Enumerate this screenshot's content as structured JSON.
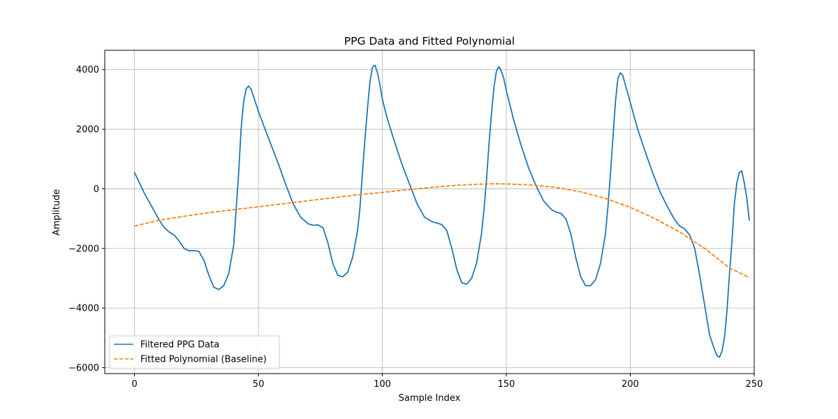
{
  "chart_data": {
    "type": "line",
    "title": "PPG Data and Fitted Polynomial",
    "xlabel": "Sample Index",
    "ylabel": "Amplitude",
    "xlim": [
      -12,
      250
    ],
    "ylim": [
      -6200,
      4650
    ],
    "x_ticks": [
      0,
      50,
      100,
      150,
      200,
      250
    ],
    "x_tick_labels": [
      "0",
      "50",
      "100",
      "150",
      "200",
      "250"
    ],
    "y_ticks": [
      -6000,
      -4000,
      -2000,
      0,
      2000,
      4000
    ],
    "y_tick_labels": [
      "−6000",
      "−4000",
      "−2000",
      "0",
      "2000",
      "4000"
    ],
    "grid": true,
    "legend_position": "lower-left",
    "series": [
      {
        "name": "Filtered PPG Data",
        "color": "#1f77b4",
        "style": "solid",
        "points": [
          [
            0,
            550
          ],
          [
            2,
            200
          ],
          [
            4,
            -150
          ],
          [
            6,
            -450
          ],
          [
            8,
            -750
          ],
          [
            10,
            -1050
          ],
          [
            12,
            -1300
          ],
          [
            14,
            -1450
          ],
          [
            16,
            -1550
          ],
          [
            18,
            -1750
          ],
          [
            20,
            -2000
          ],
          [
            22,
            -2080
          ],
          [
            24,
            -2070
          ],
          [
            26,
            -2100
          ],
          [
            28,
            -2400
          ],
          [
            30,
            -2900
          ],
          [
            32,
            -3300
          ],
          [
            34,
            -3380
          ],
          [
            36,
            -3250
          ],
          [
            38,
            -2850
          ],
          [
            40,
            -1900
          ],
          [
            42,
            500
          ],
          [
            43,
            2000
          ],
          [
            44,
            2900
          ],
          [
            45,
            3350
          ],
          [
            46,
            3450
          ],
          [
            47,
            3350
          ],
          [
            48,
            3100
          ],
          [
            50,
            2600
          ],
          [
            52,
            2150
          ],
          [
            55,
            1500
          ],
          [
            58,
            850
          ],
          [
            61,
            150
          ],
          [
            64,
            -500
          ],
          [
            67,
            -950
          ],
          [
            70,
            -1170
          ],
          [
            72,
            -1220
          ],
          [
            74,
            -1210
          ],
          [
            76,
            -1300
          ],
          [
            78,
            -1800
          ],
          [
            80,
            -2500
          ],
          [
            82,
            -2900
          ],
          [
            84,
            -2950
          ],
          [
            86,
            -2800
          ],
          [
            88,
            -2300
          ],
          [
            90,
            -1400
          ],
          [
            91,
            -600
          ],
          [
            92,
            600
          ],
          [
            93,
            1700
          ],
          [
            94,
            2700
          ],
          [
            95,
            3600
          ],
          [
            96,
            4080
          ],
          [
            97,
            4150
          ],
          [
            98,
            3900
          ],
          [
            99,
            3500
          ],
          [
            100,
            3000
          ],
          [
            102,
            2350
          ],
          [
            105,
            1550
          ],
          [
            108,
            800
          ],
          [
            111,
            150
          ],
          [
            114,
            -500
          ],
          [
            117,
            -950
          ],
          [
            120,
            -1100
          ],
          [
            122,
            -1150
          ],
          [
            124,
            -1200
          ],
          [
            126,
            -1400
          ],
          [
            128,
            -2000
          ],
          [
            130,
            -2700
          ],
          [
            132,
            -3150
          ],
          [
            134,
            -3200
          ],
          [
            136,
            -3000
          ],
          [
            138,
            -2500
          ],
          [
            140,
            -1500
          ],
          [
            141,
            -700
          ],
          [
            142,
            300
          ],
          [
            143,
            1500
          ],
          [
            144,
            2500
          ],
          [
            145,
            3400
          ],
          [
            146,
            3950
          ],
          [
            147,
            4100
          ],
          [
            148,
            3950
          ],
          [
            149,
            3700
          ],
          [
            150,
            3300
          ],
          [
            153,
            2300
          ],
          [
            156,
            1450
          ],
          [
            159,
            700
          ],
          [
            162,
            100
          ],
          [
            165,
            -400
          ],
          [
            168,
            -680
          ],
          [
            170,
            -780
          ],
          [
            172,
            -820
          ],
          [
            174,
            -1000
          ],
          [
            176,
            -1500
          ],
          [
            178,
            -2300
          ],
          [
            180,
            -2950
          ],
          [
            182,
            -3250
          ],
          [
            184,
            -3250
          ],
          [
            186,
            -3050
          ],
          [
            188,
            -2500
          ],
          [
            190,
            -1500
          ],
          [
            191,
            -600
          ],
          [
            192,
            500
          ],
          [
            193,
            1700
          ],
          [
            194,
            2900
          ],
          [
            195,
            3700
          ],
          [
            196,
            3900
          ],
          [
            197,
            3800
          ],
          [
            198,
            3500
          ],
          [
            200,
            2900
          ],
          [
            203,
            2000
          ],
          [
            206,
            1250
          ],
          [
            209,
            550
          ],
          [
            212,
            -100
          ],
          [
            215,
            -600
          ],
          [
            218,
            -1050
          ],
          [
            220,
            -1250
          ],
          [
            222,
            -1350
          ],
          [
            224,
            -1550
          ],
          [
            226,
            -2000
          ],
          [
            228,
            -2900
          ],
          [
            230,
            -3900
          ],
          [
            232,
            -4900
          ],
          [
            234,
            -5400
          ],
          [
            235,
            -5600
          ],
          [
            236,
            -5650
          ],
          [
            237,
            -5450
          ],
          [
            238,
            -5000
          ],
          [
            239,
            -4100
          ],
          [
            240,
            -2900
          ],
          [
            241,
            -1800
          ],
          [
            242,
            -500
          ],
          [
            243,
            200
          ],
          [
            244,
            550
          ],
          [
            245,
            600
          ],
          [
            246,
            200
          ],
          [
            247,
            -300
          ],
          [
            248,
            -1050
          ]
        ]
      },
      {
        "name": "Fitted Polynomial (Baseline)",
        "color": "#ff7f0e",
        "style": "dashed",
        "points": [
          [
            0,
            -1250
          ],
          [
            10,
            -1050
          ],
          [
            20,
            -920
          ],
          [
            30,
            -800
          ],
          [
            40,
            -700
          ],
          [
            50,
            -600
          ],
          [
            60,
            -500
          ],
          [
            70,
            -400
          ],
          [
            80,
            -300
          ],
          [
            90,
            -200
          ],
          [
            100,
            -120
          ],
          [
            110,
            -30
          ],
          [
            120,
            50
          ],
          [
            130,
            120
          ],
          [
            140,
            160
          ],
          [
            145,
            170
          ],
          [
            150,
            165
          ],
          [
            160,
            130
          ],
          [
            170,
            50
          ],
          [
            180,
            -100
          ],
          [
            190,
            -320
          ],
          [
            200,
            -620
          ],
          [
            210,
            -1000
          ],
          [
            220,
            -1450
          ],
          [
            230,
            -2000
          ],
          [
            240,
            -2650
          ],
          [
            248,
            -2980
          ]
        ]
      }
    ]
  }
}
